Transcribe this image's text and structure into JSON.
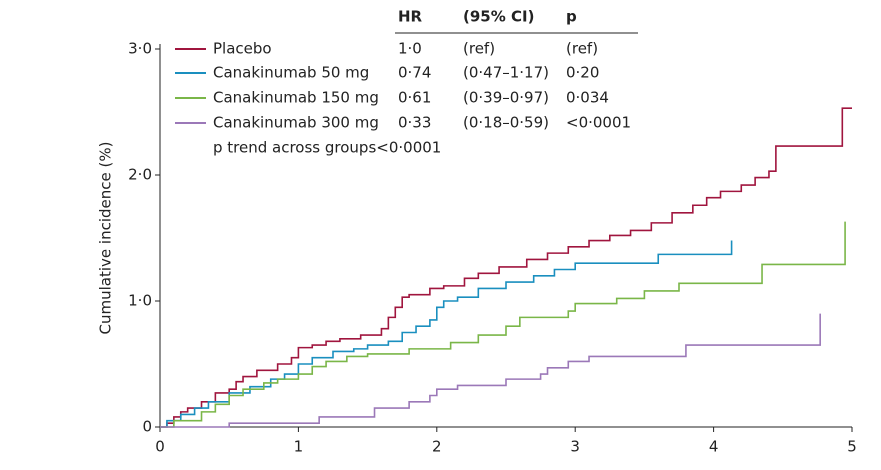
{
  "chart_data": {
    "type": "line",
    "step": true,
    "ylabel": "Cumulative incidence (%)",
    "xlim": [
      0,
      5
    ],
    "xticks": [
      0,
      1,
      2,
      3,
      4,
      5
    ],
    "ylim": [
      0,
      3
    ],
    "yticks": [
      0,
      {
        "value": 1,
        "label": "1·0"
      },
      {
        "value": 2,
        "label": "2·0"
      },
      {
        "value": 3,
        "label": "3·0"
      }
    ],
    "series": [
      {
        "name": "Placebo",
        "color": "#a0153e",
        "x": [
          0,
          0.05,
          0.1,
          0.15,
          0.2,
          0.3,
          0.4,
          0.5,
          0.55,
          0.6,
          0.7,
          0.85,
          0.95,
          1.0,
          1.1,
          1.2,
          1.3,
          1.45,
          1.6,
          1.65,
          1.7,
          1.75,
          1.8,
          1.95,
          2.05,
          2.2,
          2.3,
          2.45,
          2.65,
          2.8,
          2.95,
          3.1,
          3.25,
          3.4,
          3.55,
          3.7,
          3.85,
          3.95,
          4.05,
          4.2,
          4.3,
          4.4,
          4.45,
          4.93,
          5.0
        ],
        "values": [
          0,
          0.03,
          0.08,
          0.12,
          0.15,
          0.2,
          0.27,
          0.3,
          0.36,
          0.4,
          0.45,
          0.5,
          0.55,
          0.63,
          0.65,
          0.68,
          0.7,
          0.73,
          0.78,
          0.87,
          0.95,
          1.03,
          1.05,
          1.1,
          1.12,
          1.18,
          1.22,
          1.27,
          1.33,
          1.38,
          1.43,
          1.48,
          1.52,
          1.56,
          1.62,
          1.7,
          1.76,
          1.82,
          1.87,
          1.92,
          1.98,
          2.03,
          2.23,
          2.53,
          2.53
        ]
      },
      {
        "name": "Canakinumab 50 mg",
        "color": "#1a8fbf",
        "x": [
          0,
          0.05,
          0.15,
          0.25,
          0.35,
          0.5,
          0.65,
          0.8,
          0.9,
          1.0,
          1.1,
          1.25,
          1.4,
          1.5,
          1.65,
          1.75,
          1.85,
          1.95,
          2.0,
          2.05,
          2.15,
          2.3,
          2.5,
          2.7,
          2.85,
          3.0,
          3.6,
          4.13
        ],
        "values": [
          0,
          0.05,
          0.1,
          0.15,
          0.2,
          0.27,
          0.32,
          0.38,
          0.42,
          0.5,
          0.55,
          0.6,
          0.62,
          0.65,
          0.68,
          0.75,
          0.8,
          0.85,
          0.95,
          1.0,
          1.03,
          1.1,
          1.15,
          1.2,
          1.25,
          1.3,
          1.37,
          1.48
        ]
      },
      {
        "name": "Canakinumab 150 mg",
        "color": "#7ab648",
        "x": [
          0,
          0.1,
          0.3,
          0.4,
          0.5,
          0.6,
          0.75,
          0.85,
          1.0,
          1.1,
          1.2,
          1.35,
          1.5,
          1.8,
          2.1,
          2.3,
          2.5,
          2.6,
          2.95,
          3.0,
          3.3,
          3.5,
          3.75,
          4.35,
          4.95
        ],
        "values": [
          0,
          0.05,
          0.12,
          0.18,
          0.25,
          0.3,
          0.35,
          0.38,
          0.42,
          0.48,
          0.52,
          0.56,
          0.58,
          0.62,
          0.67,
          0.73,
          0.8,
          0.87,
          0.92,
          0.98,
          1.02,
          1.08,
          1.14,
          1.29,
          1.63
        ]
      },
      {
        "name": "Canakinumab 300 mg",
        "color": "#9b78b8",
        "x": [
          0,
          0.5,
          1.15,
          1.55,
          1.8,
          1.95,
          2.0,
          2.15,
          2.5,
          2.75,
          2.8,
          2.95,
          3.1,
          3.8,
          4.77
        ],
        "values": [
          0,
          0.03,
          0.08,
          0.15,
          0.2,
          0.25,
          0.3,
          0.33,
          0.38,
          0.42,
          0.47,
          0.52,
          0.56,
          0.65,
          0.9
        ]
      }
    ],
    "table": {
      "headers": [
        "HR",
        "(95% CI)",
        "p"
      ],
      "rows": [
        [
          "1·0",
          "(ref)",
          "(ref)"
        ],
        [
          "0·74",
          "(0·47–1·17)",
          "0·20"
        ],
        [
          "0·61",
          "(0·39–0·97)",
          "0·034"
        ],
        [
          "0·33",
          "(0·18–0·59)",
          "<0·0001"
        ]
      ],
      "footnote": "p trend across groups<0·0001"
    }
  }
}
